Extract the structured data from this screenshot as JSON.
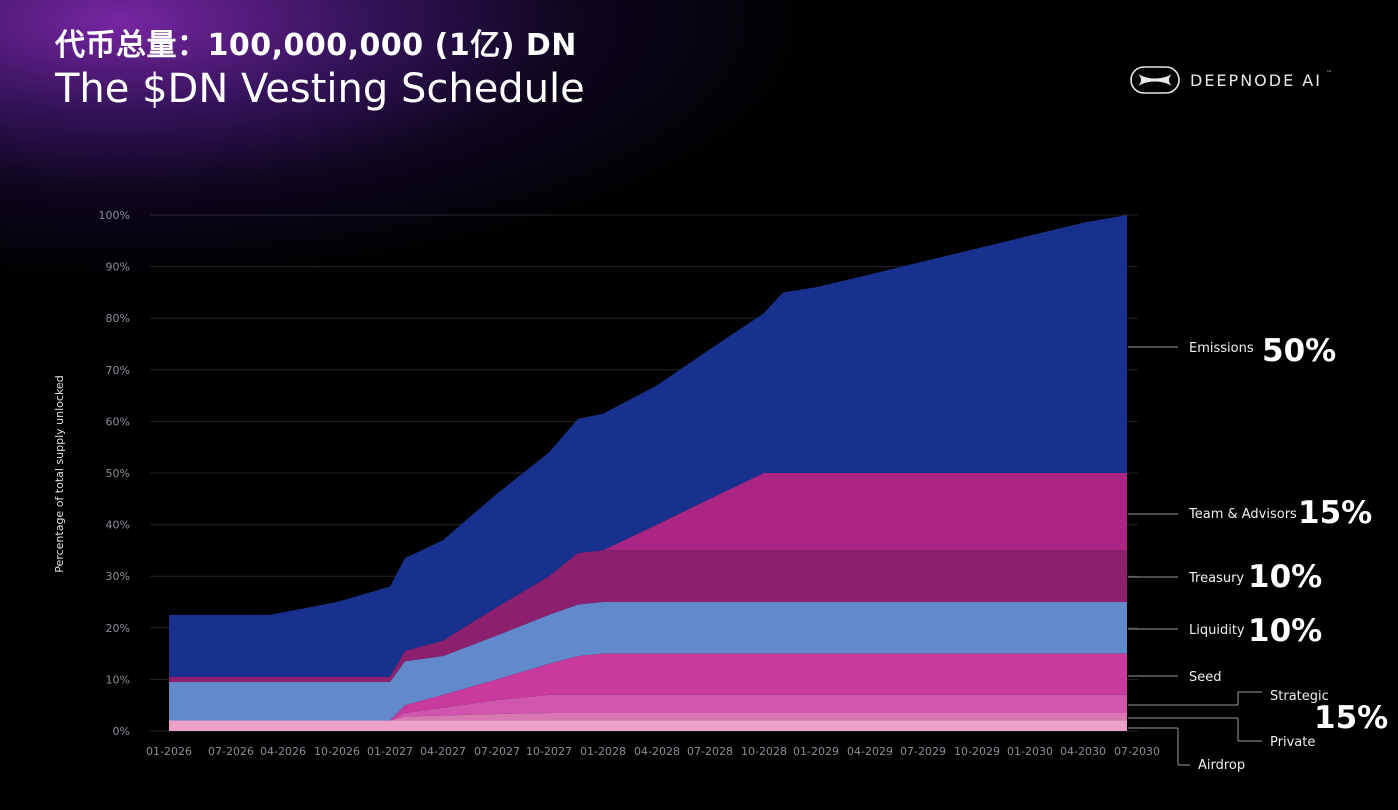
{
  "header": {
    "token_total": "代币总量：100,000,000 (1亿) DN",
    "title": "The $DN Vesting Schedule"
  },
  "brand": {
    "name": "DEEPNODE AI",
    "mark": "™",
    "logo_icon": "deepnode-logo-icon"
  },
  "colors": {
    "airdrop": "#eda0c8",
    "private": "#d877b1",
    "strategic": "#cf55ad",
    "seed": "#c93a9f",
    "liquidity": "#6189cc",
    "treasury": "#8c206e",
    "team": "#ab2684",
    "emissions": "#18318f"
  },
  "chart_data": {
    "type": "area",
    "stacked": true,
    "ylabel": "Percentage of total supply unlocked",
    "xlabel": "",
    "ylim": [
      0,
      100
    ],
    "yticks": [
      "0%",
      "10%",
      "20%",
      "30%",
      "40%",
      "50%",
      "60%",
      "70%",
      "80%",
      "90%",
      "100%"
    ],
    "xticks": [
      "01-2026",
      "07-2026",
      "04-2026",
      "10-2026",
      "01-2027",
      "04-2027",
      "07-2027",
      "10-2027",
      "01-2028",
      "04-2028",
      "07-2028",
      "10-2028",
      "01-2029",
      "04-2029",
      "07-2029",
      "10-2029",
      "01-2030",
      "04-2030",
      "07-2030"
    ],
    "grid": true,
    "x": [
      "01-2026",
      "07-2026",
      "04-2026",
      "10-2026",
      "01-2027",
      "Mar-2027",
      "04-2027",
      "07-2027",
      "10-2027",
      "Dec-2027",
      "01-2028",
      "04-2028",
      "07-2028",
      "10-2028",
      "Nov-2028",
      "01-2029",
      "04-2029",
      "07-2029",
      "10-2029",
      "01-2030",
      "04-2030",
      "07-2030"
    ],
    "cumulative": true,
    "series": [
      {
        "key": "airdrop",
        "values": [
          2,
          2,
          2,
          2,
          2,
          2,
          2,
          2,
          2,
          2,
          2,
          2,
          2,
          2,
          2,
          2,
          2,
          2,
          2,
          2,
          2,
          2
        ]
      },
      {
        "key": "private",
        "values": [
          2,
          2,
          2,
          2,
          2,
          2.8,
          3,
          3.3,
          3.5,
          3.5,
          3.5,
          3.5,
          3.5,
          3.5,
          3.5,
          3.5,
          3.5,
          3.5,
          3.5,
          3.5,
          3.5,
          3.5
        ]
      },
      {
        "key": "strategic",
        "values": [
          2,
          2,
          2,
          2,
          2,
          3.5,
          4.5,
          6,
          7,
          7,
          7,
          7,
          7,
          7,
          7,
          7,
          7,
          7,
          7,
          7,
          7,
          7
        ]
      },
      {
        "key": "seed",
        "values": [
          2,
          2,
          2,
          2,
          2,
          5,
          7,
          10,
          13,
          14.5,
          15,
          15,
          15,
          15,
          15,
          15,
          15,
          15,
          15,
          15,
          15,
          15
        ]
      },
      {
        "key": "liquidity",
        "values": [
          9.5,
          9.5,
          9.5,
          9.5,
          9.5,
          13.5,
          14.5,
          18.5,
          22.5,
          24.5,
          25,
          25,
          25,
          25,
          25,
          25,
          25,
          25,
          25,
          25,
          25,
          25
        ]
      },
      {
        "key": "treasury",
        "values": [
          10.5,
          10.5,
          10.5,
          10.5,
          10.5,
          15.5,
          17.5,
          24,
          30,
          34.5,
          35,
          35,
          35,
          35,
          35,
          35,
          35,
          35,
          35,
          35,
          35,
          35
        ]
      },
      {
        "key": "team",
        "values": [
          10.5,
          10.5,
          10.5,
          10.5,
          10.5,
          15.5,
          17.5,
          24,
          30,
          34.5,
          35,
          40,
          45,
          50,
          50,
          50,
          50,
          50,
          50,
          50,
          50,
          50
        ]
      },
      {
        "key": "emissions",
        "values": [
          22.5,
          22.5,
          22.5,
          25,
          28,
          33.5,
          37,
          46,
          54,
          60.5,
          61.5,
          67,
          74,
          81,
          85,
          86,
          88.5,
          91,
          93.5,
          96,
          98.5,
          100
        ]
      }
    ],
    "legend": {
      "emissions": {
        "label": "Emissions",
        "pct": "50%"
      },
      "team": {
        "label": "Team & Advisors",
        "pct": "15%"
      },
      "treasury": {
        "label": "Treasury",
        "pct": "10%"
      },
      "liquidity": {
        "label": "Liquidity",
        "pct": "10%"
      },
      "seed": {
        "label": "Seed"
      },
      "strategic": {
        "label": "Strategic"
      },
      "private": {
        "label": "Private"
      },
      "airdrop": {
        "label": "Airdrop"
      },
      "group_pct": "15%"
    }
  }
}
